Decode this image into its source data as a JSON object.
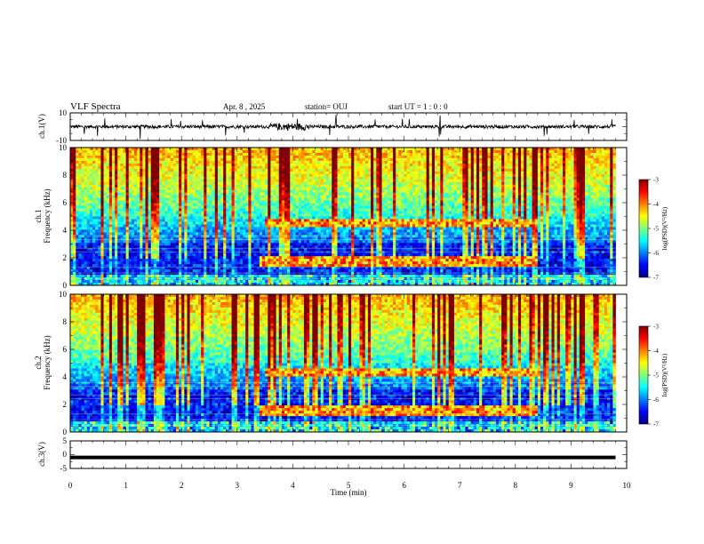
{
  "header": {
    "title": "VLF Spectra",
    "date": "Apr. 8 , 2025",
    "station": "station= OUJ",
    "start": "start  UT =   1 : 0  : 0"
  },
  "chart_data": [
    {
      "type": "line",
      "panel": "ch1-waveform",
      "ylabel": "ch.1(V)",
      "ylim": [
        -10,
        10
      ],
      "yticks": [
        "10",
        "-10"
      ],
      "xlim": [
        0,
        10
      ],
      "description_values": {
        "baseline": 0,
        "typical_amplitude": 1.2
      }
    },
    {
      "type": "heatmap",
      "panel": "ch1-spectrogram",
      "ylabel_line1": "ch.1",
      "ylabel_line2": "Frequency (kHz)",
      "ylim": [
        0,
        10
      ],
      "yticks": [
        "0",
        "2",
        "4",
        "6",
        "8",
        "10"
      ],
      "xlim": [
        0,
        10
      ],
      "data_end_min": 9.8,
      "colorbar": {
        "min": -7,
        "max": -3,
        "ticks": [
          "-3",
          "-4",
          "-5",
          "-6",
          "-7"
        ],
        "label": "log(PSD)(V²/Hz)"
      },
      "features": [
        {
          "kind": "band",
          "t0": 3.5,
          "t1": 8.4,
          "f": 4.5
        },
        {
          "kind": "band",
          "t0": 3.4,
          "t1": 8.4,
          "f": 1.7
        }
      ]
    },
    {
      "type": "heatmap",
      "panel": "ch2-spectrogram",
      "ylabel_line1": "ch.2",
      "ylabel_line2": "Frequency (kHz)",
      "ylim": [
        0,
        10
      ],
      "yticks": [
        "0",
        "2",
        "4",
        "6",
        "8",
        "10"
      ],
      "xlim": [
        0,
        10
      ],
      "data_end_min": 9.8,
      "colorbar": {
        "min": -7,
        "max": -3,
        "ticks": [
          "-3",
          "-4",
          "-5",
          "-6",
          "-7"
        ],
        "label": "log(PSD)(V²/Hz)"
      },
      "features": [
        {
          "kind": "band",
          "t0": 3.5,
          "t1": 8.4,
          "f": 4.3
        },
        {
          "kind": "band",
          "t0": 3.4,
          "t1": 8.4,
          "f": 1.5
        }
      ]
    },
    {
      "type": "line",
      "panel": "ch3-waveform",
      "ylabel": "ch.3(V)",
      "ylim": [
        -5,
        5
      ],
      "yticks": [
        "5",
        "0",
        "-5"
      ],
      "xlim": [
        0,
        10
      ],
      "values_const": -1.0,
      "xlabel": "Time  (min)",
      "xticks": [
        "0",
        "1",
        "2",
        "3",
        "4",
        "5",
        "6",
        "7",
        "8",
        "9",
        "10"
      ]
    }
  ],
  "colors": {
    "colormap": [
      "#00007f",
      "#0000ff",
      "#007fff",
      "#00ffff",
      "#7fff7f",
      "#ffff00",
      "#ff7f00",
      "#ff0000",
      "#7f0000"
    ]
  }
}
